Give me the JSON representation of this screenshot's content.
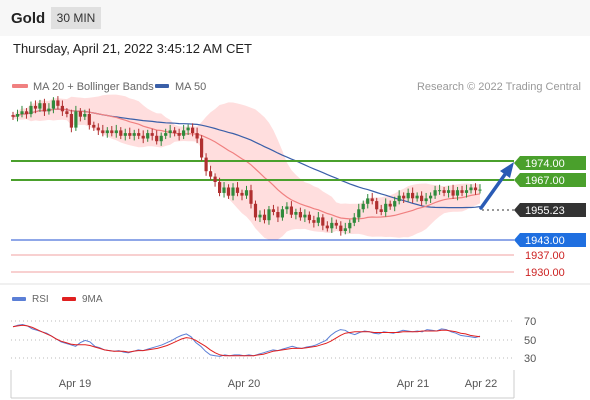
{
  "header": {
    "title": "Gold",
    "timeframe": "30 MIN"
  },
  "datetime": "Thursday, April 21, 2022 3:45:12 AM CET",
  "legend": {
    "bollinger": "MA 20 + Bollinger Bands",
    "ma50": "MA 50",
    "credit": "Research © 2022 Trading Central"
  },
  "colors": {
    "up_candle": "#2f8a3c",
    "down_candle": "#b03030",
    "ma20": "#f08080",
    "ma50": "#3a5fa8",
    "band_fill": "#ffd6d6",
    "resistance": "#4aa02c",
    "pivot": "#1f4fd0",
    "support": "#e87070",
    "rsi": "#5b7fd6",
    "rsi_ma": "#e02020",
    "current": "#333333"
  },
  "levels": [
    {
      "value": "1974.00",
      "kind": "resistance"
    },
    {
      "value": "1967.00",
      "kind": "resistance"
    },
    {
      "value": "1955.23",
      "kind": "current"
    },
    {
      "value": "1943.00",
      "kind": "pivot"
    },
    {
      "value": "1937.00",
      "kind": "support"
    },
    {
      "value": "1930.00",
      "kind": "support"
    }
  ],
  "rsi_panel": {
    "rsi_label": "RSI",
    "ma_label": "9MA",
    "ticks": [
      "70",
      "50",
      "30"
    ]
  },
  "x_labels": [
    "Apr 19",
    "Apr 20",
    "Apr 21",
    "Apr 22"
  ],
  "chart_data": {
    "type": "candlestick",
    "y_range": [
      1922,
      1990
    ],
    "levels": [
      1974.0,
      1967.0,
      1943.0,
      1937.0,
      1930.0
    ],
    "last_price": 1955.23,
    "x_ticks": [
      "Apr 19",
      "Apr 20",
      "Apr 21",
      "Apr 22"
    ],
    "close": [
      1982,
      1983,
      1984,
      1983,
      1986,
      1985,
      1987,
      1984,
      1985,
      1988,
      1986,
      1984,
      1983,
      1978,
      1984,
      1982,
      1983,
      1979,
      1978,
      1977,
      1976,
      1977,
      1976,
      1977,
      1975,
      1976,
      1975,
      1976,
      1975,
      1974,
      1976,
      1975,
      1973,
      1975,
      1976,
      1977,
      1976,
      1975,
      1977,
      1978,
      1976,
      1974,
      1967,
      1962,
      1960,
      1958,
      1954,
      1956,
      1953,
      1956,
      1954,
      1953,
      1955,
      1950,
      1945,
      1946,
      1944,
      1948,
      1947,
      1945,
      1948,
      1949,
      1946,
      1947,
      1945,
      1946,
      1944,
      1943,
      1945,
      1942,
      1941,
      1943,
      1942,
      1940,
      1941,
      1943,
      1945,
      1948,
      1950,
      1952,
      1951,
      1948,
      1947,
      1950,
      1949,
      1951,
      1953,
      1952,
      1954,
      1952,
      1953,
      1951,
      1952,
      1953,
      1955,
      1955,
      1954,
      1955,
      1953,
      1955,
      1954,
      1955,
      1956,
      1955,
      1955.23
    ],
    "rsi": [
      67,
      69,
      70,
      68,
      64,
      62,
      60,
      58,
      54,
      50,
      46,
      44,
      42,
      40,
      45,
      48,
      46,
      40,
      38,
      35,
      34,
      33,
      34,
      32,
      31,
      33,
      35,
      34,
      36,
      38,
      40,
      42,
      45,
      48,
      52,
      55,
      57,
      53,
      45,
      40,
      33,
      28,
      27,
      26,
      28,
      27,
      28,
      28,
      27,
      28,
      27,
      29,
      31,
      33,
      35,
      34,
      36,
      38,
      40,
      38,
      37,
      39,
      40,
      42,
      45,
      48,
      55,
      60,
      63,
      62,
      58,
      56,
      59,
      61,
      60,
      58,
      57,
      60,
      59,
      58,
      60,
      62,
      61,
      60,
      61,
      60,
      63,
      62,
      61,
      64,
      63,
      60,
      58,
      55,
      54,
      53,
      52,
      54
    ],
    "rsi_ma": [
      67,
      68,
      69,
      68,
      66,
      63,
      60,
      57,
      54,
      50,
      47,
      45,
      43,
      42,
      42,
      42,
      41,
      39,
      37,
      35,
      34,
      33,
      33,
      33,
      32,
      33,
      34,
      34,
      35,
      36,
      37,
      39,
      41,
      44,
      47,
      50,
      52,
      51,
      48,
      44,
      40,
      35,
      31,
      28,
      27,
      27,
      27,
      27,
      27,
      27,
      27,
      28,
      29,
      31,
      33,
      34,
      35,
      36,
      37,
      37,
      37,
      38,
      39,
      40,
      42,
      44,
      47,
      51,
      55,
      58,
      59,
      60,
      60,
      60,
      60,
      59,
      59,
      59,
      59,
      59,
      59,
      60,
      60,
      60,
      60,
      61,
      61,
      61,
      61,
      62,
      62,
      61,
      60,
      58,
      57,
      55,
      54,
      53
    ]
  }
}
